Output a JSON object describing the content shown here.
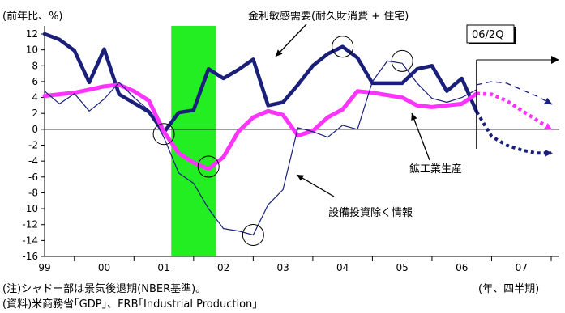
{
  "chart_data": {
    "type": "line",
    "ylabel": "(前年比、%)",
    "ylim": [
      -16,
      12
    ],
    "y_ticks": [
      "12",
      "10",
      "8",
      "6",
      "4",
      "2",
      "0",
      "-2",
      "-4",
      "-6",
      "-8",
      "-10",
      "-12",
      "-14",
      "-16"
    ],
    "x_domain": [
      1999.0,
      2007.5
    ],
    "x_ticks": [
      {
        "label": "99",
        "x": 1999.0
      },
      {
        "label": "00",
        "x": 2000.0
      },
      {
        "label": "01",
        "x": 2001.0
      },
      {
        "label": "02",
        "x": 2002.0
      },
      {
        "label": "03",
        "x": 2003.0
      },
      {
        "label": "04",
        "x": 2004.0
      },
      {
        "label": "05",
        "x": 2005.0
      },
      {
        "label": "06",
        "x": 2006.0
      },
      {
        "label": "07",
        "x": 2007.0
      }
    ],
    "xlabel": "(年、四半期)",
    "recession": {
      "start": 2001.125,
      "end": 2001.875
    },
    "forecast_start_label": "06/2Q",
    "series": [
      {
        "name": "金利敏感需要(耐久財消費 + 住宅)",
        "color": "#1a1f7a",
        "points": [
          [
            1999.0,
            12.0
          ],
          [
            1999.25,
            11.3
          ],
          [
            1999.5,
            9.9
          ],
          [
            1999.75,
            5.9
          ],
          [
            2000.0,
            10.1
          ],
          [
            2000.25,
            4.4
          ],
          [
            2000.5,
            3.3
          ],
          [
            2000.75,
            2.2
          ],
          [
            2001.0,
            -0.4
          ],
          [
            2001.25,
            2.1
          ],
          [
            2001.5,
            2.4
          ],
          [
            2001.75,
            7.6
          ],
          [
            2002.0,
            6.4
          ],
          [
            2002.25,
            7.5
          ],
          [
            2002.5,
            8.8
          ],
          [
            2002.75,
            3.0
          ],
          [
            2003.0,
            3.4
          ],
          [
            2003.25,
            5.6
          ],
          [
            2003.5,
            8.0
          ],
          [
            2003.75,
            9.5
          ],
          [
            2004.0,
            10.4
          ],
          [
            2004.25,
            9.0
          ],
          [
            2004.5,
            5.8
          ],
          [
            2004.75,
            5.8
          ],
          [
            2005.0,
            5.8
          ],
          [
            2005.25,
            7.6
          ],
          [
            2005.5,
            8.0
          ],
          [
            2005.75,
            4.8
          ],
          [
            2006.0,
            6.4
          ],
          [
            2006.25,
            2.2
          ]
        ]
      },
      {
        "name": "鉱工業生産",
        "color": "#ff33ff",
        "points": [
          [
            1999.0,
            4.2
          ],
          [
            1999.25,
            4.4
          ],
          [
            1999.5,
            4.6
          ],
          [
            1999.75,
            5.0
          ],
          [
            2000.0,
            5.4
          ],
          [
            2000.25,
            5.6
          ],
          [
            2000.5,
            4.8
          ],
          [
            2000.75,
            3.6
          ],
          [
            2001.0,
            -0.3
          ],
          [
            2001.25,
            -3.0
          ],
          [
            2001.5,
            -4.2
          ],
          [
            2001.75,
            -5.0
          ],
          [
            2002.0,
            -3.5
          ],
          [
            2002.25,
            -0.3
          ],
          [
            2002.5,
            1.5
          ],
          [
            2002.75,
            2.3
          ],
          [
            2003.0,
            1.8
          ],
          [
            2003.25,
            -0.8
          ],
          [
            2003.5,
            -0.2
          ],
          [
            2003.75,
            1.5
          ],
          [
            2004.0,
            2.5
          ],
          [
            2004.25,
            4.8
          ],
          [
            2004.5,
            4.6
          ],
          [
            2004.75,
            4.3
          ],
          [
            2005.0,
            4.0
          ],
          [
            2005.25,
            3.0
          ],
          [
            2005.5,
            2.8
          ],
          [
            2005.75,
            3.0
          ],
          [
            2006.0,
            3.2
          ],
          [
            2006.25,
            4.5
          ]
        ]
      },
      {
        "name": "設備投資除く情報",
        "color": "#1a1f7a",
        "points": [
          [
            1999.0,
            4.8
          ],
          [
            1999.25,
            3.2
          ],
          [
            1999.5,
            4.5
          ],
          [
            1999.75,
            2.3
          ],
          [
            2000.0,
            3.8
          ],
          [
            2000.25,
            5.9
          ],
          [
            2000.5,
            4.0
          ],
          [
            2000.75,
            2.4
          ],
          [
            2001.0,
            -1.0
          ],
          [
            2001.25,
            -5.5
          ],
          [
            2001.5,
            -6.8
          ],
          [
            2001.75,
            -10.0
          ],
          [
            2002.0,
            -12.5
          ],
          [
            2002.25,
            -12.8
          ],
          [
            2002.5,
            -13.3
          ],
          [
            2002.75,
            -9.5
          ],
          [
            2003.0,
            -7.6
          ],
          [
            2003.25,
            0.2
          ],
          [
            2003.5,
            -0.3
          ],
          [
            2003.75,
            -1.0
          ],
          [
            2004.0,
            0.5
          ],
          [
            2004.25,
            0.0
          ],
          [
            2004.5,
            6.0
          ],
          [
            2004.75,
            8.6
          ],
          [
            2005.0,
            8.3
          ],
          [
            2005.25,
            5.8
          ],
          [
            2005.5,
            3.9
          ],
          [
            2005.75,
            3.4
          ],
          [
            2006.0,
            4.0
          ],
          [
            2006.25,
            5.0
          ]
        ]
      }
    ],
    "forecasts": [
      {
        "points": [
          [
            2006.25,
            5.6
          ],
          [
            2006.5,
            6.0
          ],
          [
            2006.75,
            5.8
          ],
          [
            2007.0,
            5.0
          ],
          [
            2007.25,
            4.2
          ],
          [
            2007.5,
            3.2
          ]
        ],
        "color": "#1a1f7a"
      },
      {
        "points": [
          [
            2006.25,
            4.5
          ],
          [
            2006.5,
            4.4
          ],
          [
            2006.75,
            3.6
          ],
          [
            2007.0,
            2.4
          ],
          [
            2007.25,
            1.2
          ],
          [
            2007.5,
            0.0
          ]
        ],
        "color": "#ff33ff"
      },
      {
        "points": [
          [
            2006.25,
            2.2
          ],
          [
            2006.5,
            -0.9
          ],
          [
            2006.75,
            -2.0
          ],
          [
            2007.0,
            -2.6
          ],
          [
            2007.25,
            -3.0
          ],
          [
            2007.5,
            -3.0
          ]
        ],
        "color": "#1a1f7a"
      }
    ],
    "circles": [
      {
        "x": 2001.0,
        "y": -0.6
      },
      {
        "x": 2001.75,
        "y": -4.7
      },
      {
        "x": 2002.5,
        "y": -13.3
      },
      {
        "x": 2004.0,
        "y": 10.4
      },
      {
        "x": 2005.0,
        "y": 8.6
      }
    ],
    "annotations": {
      "label_rate_sensitive": "金利敏感需要(耐久財消費 + 住宅)",
      "label_ip": "鉱工業生産",
      "label_capex": "設備投資除く情報"
    },
    "colors": {
      "recession": "#22ee22",
      "axis": "#000000"
    }
  },
  "footnotes": {
    "note": "(注)シャドー部は景気後退期(NBER基準)。",
    "source": "(資料)米商務省｢GDP｣、FRB｢Industrial Production｣"
  }
}
